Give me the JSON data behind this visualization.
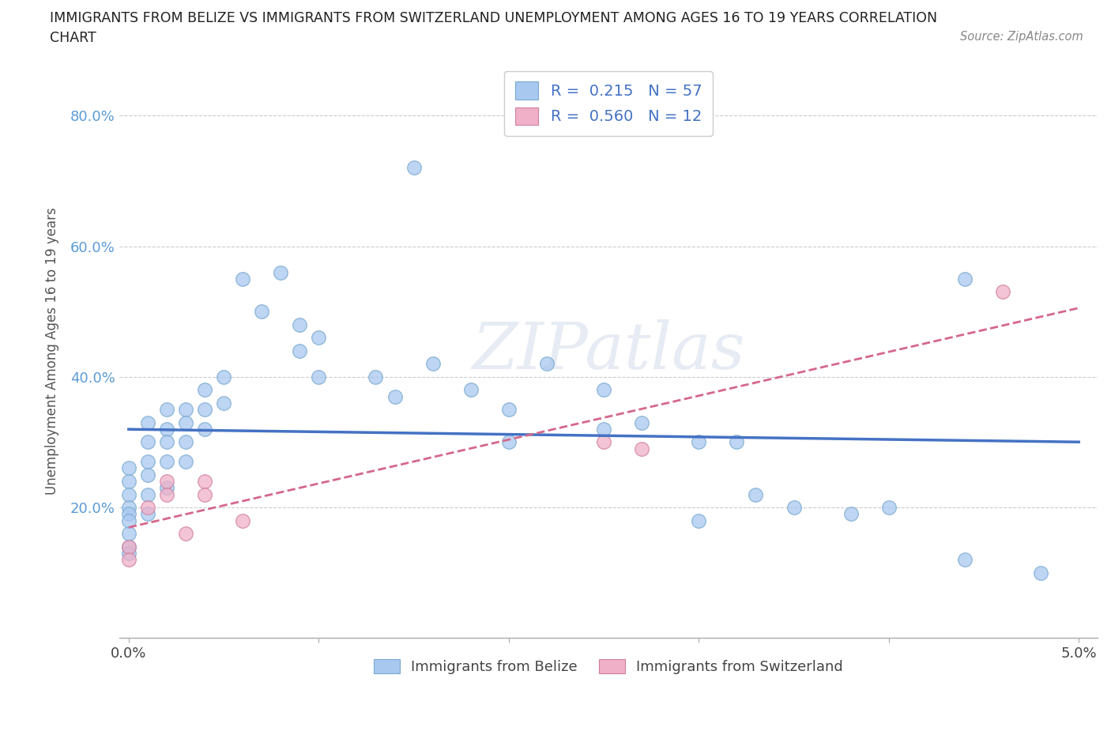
{
  "title_line1": "IMMIGRANTS FROM BELIZE VS IMMIGRANTS FROM SWITZERLAND UNEMPLOYMENT AMONG AGES 16 TO 19 YEARS CORRELATION",
  "title_line2": "CHART",
  "source": "Source: ZipAtlas.com",
  "ylabel": "Unemployment Among Ages 16 to 19 years",
  "xlim": [
    -0.0005,
    0.051
  ],
  "ylim": [
    0.0,
    0.88
  ],
  "y_ticks": [
    0.2,
    0.4,
    0.6,
    0.8
  ],
  "y_tick_labels": [
    "20.0%",
    "40.0%",
    "60.0%",
    "80.0%"
  ],
  "belize_color": "#a8c8f0",
  "belize_edge_color": "#7aaad0",
  "switzerland_color": "#f0b0c8",
  "switzerland_edge_color": "#d080a0",
  "belize_line_color": "#4472c4",
  "switzerland_line_color": "#d4688a",
  "R_belize": 0.215,
  "N_belize": 57,
  "R_switzerland": 0.56,
  "N_switzerland": 12,
  "belize_scatter_x": [
    0.0,
    0.0,
    0.0,
    0.0,
    0.0,
    0.0,
    0.0,
    0.0,
    0.0,
    0.001,
    0.001,
    0.001,
    0.001,
    0.001,
    0.001,
    0.002,
    0.002,
    0.002,
    0.002,
    0.002,
    0.003,
    0.003,
    0.003,
    0.003,
    0.004,
    0.004,
    0.004,
    0.005,
    0.005,
    0.006,
    0.007,
    0.008,
    0.009,
    0.009,
    0.01,
    0.01,
    0.013,
    0.014,
    0.015,
    0.016,
    0.018,
    0.02,
    0.02,
    0.022,
    0.025,
    0.025,
    0.027,
    0.03,
    0.03,
    0.032,
    0.033,
    0.035,
    0.038,
    0.04,
    0.044,
    0.044,
    0.048
  ],
  "belize_scatter_y": [
    0.26,
    0.24,
    0.22,
    0.2,
    0.19,
    0.18,
    0.16,
    0.14,
    0.13,
    0.33,
    0.3,
    0.27,
    0.25,
    0.22,
    0.19,
    0.35,
    0.32,
    0.3,
    0.27,
    0.23,
    0.35,
    0.33,
    0.3,
    0.27,
    0.38,
    0.35,
    0.32,
    0.4,
    0.36,
    0.55,
    0.5,
    0.56,
    0.48,
    0.44,
    0.46,
    0.4,
    0.4,
    0.37,
    0.72,
    0.42,
    0.38,
    0.35,
    0.3,
    0.42,
    0.38,
    0.32,
    0.33,
    0.3,
    0.18,
    0.3,
    0.22,
    0.2,
    0.19,
    0.2,
    0.55,
    0.12,
    0.1
  ],
  "switzerland_scatter_x": [
    0.0,
    0.0,
    0.001,
    0.002,
    0.002,
    0.003,
    0.004,
    0.004,
    0.006,
    0.025,
    0.027,
    0.046
  ],
  "switzerland_scatter_y": [
    0.14,
    0.12,
    0.2,
    0.24,
    0.22,
    0.16,
    0.24,
    0.22,
    0.18,
    0.3,
    0.29,
    0.53
  ],
  "watermark_text": "ZIPatlas",
  "background_color": "#ffffff",
  "grid_color": "#cccccc",
  "legend_label_belize": "Immigrants from Belize",
  "legend_label_switzerland": "Immigrants from Switzerland"
}
